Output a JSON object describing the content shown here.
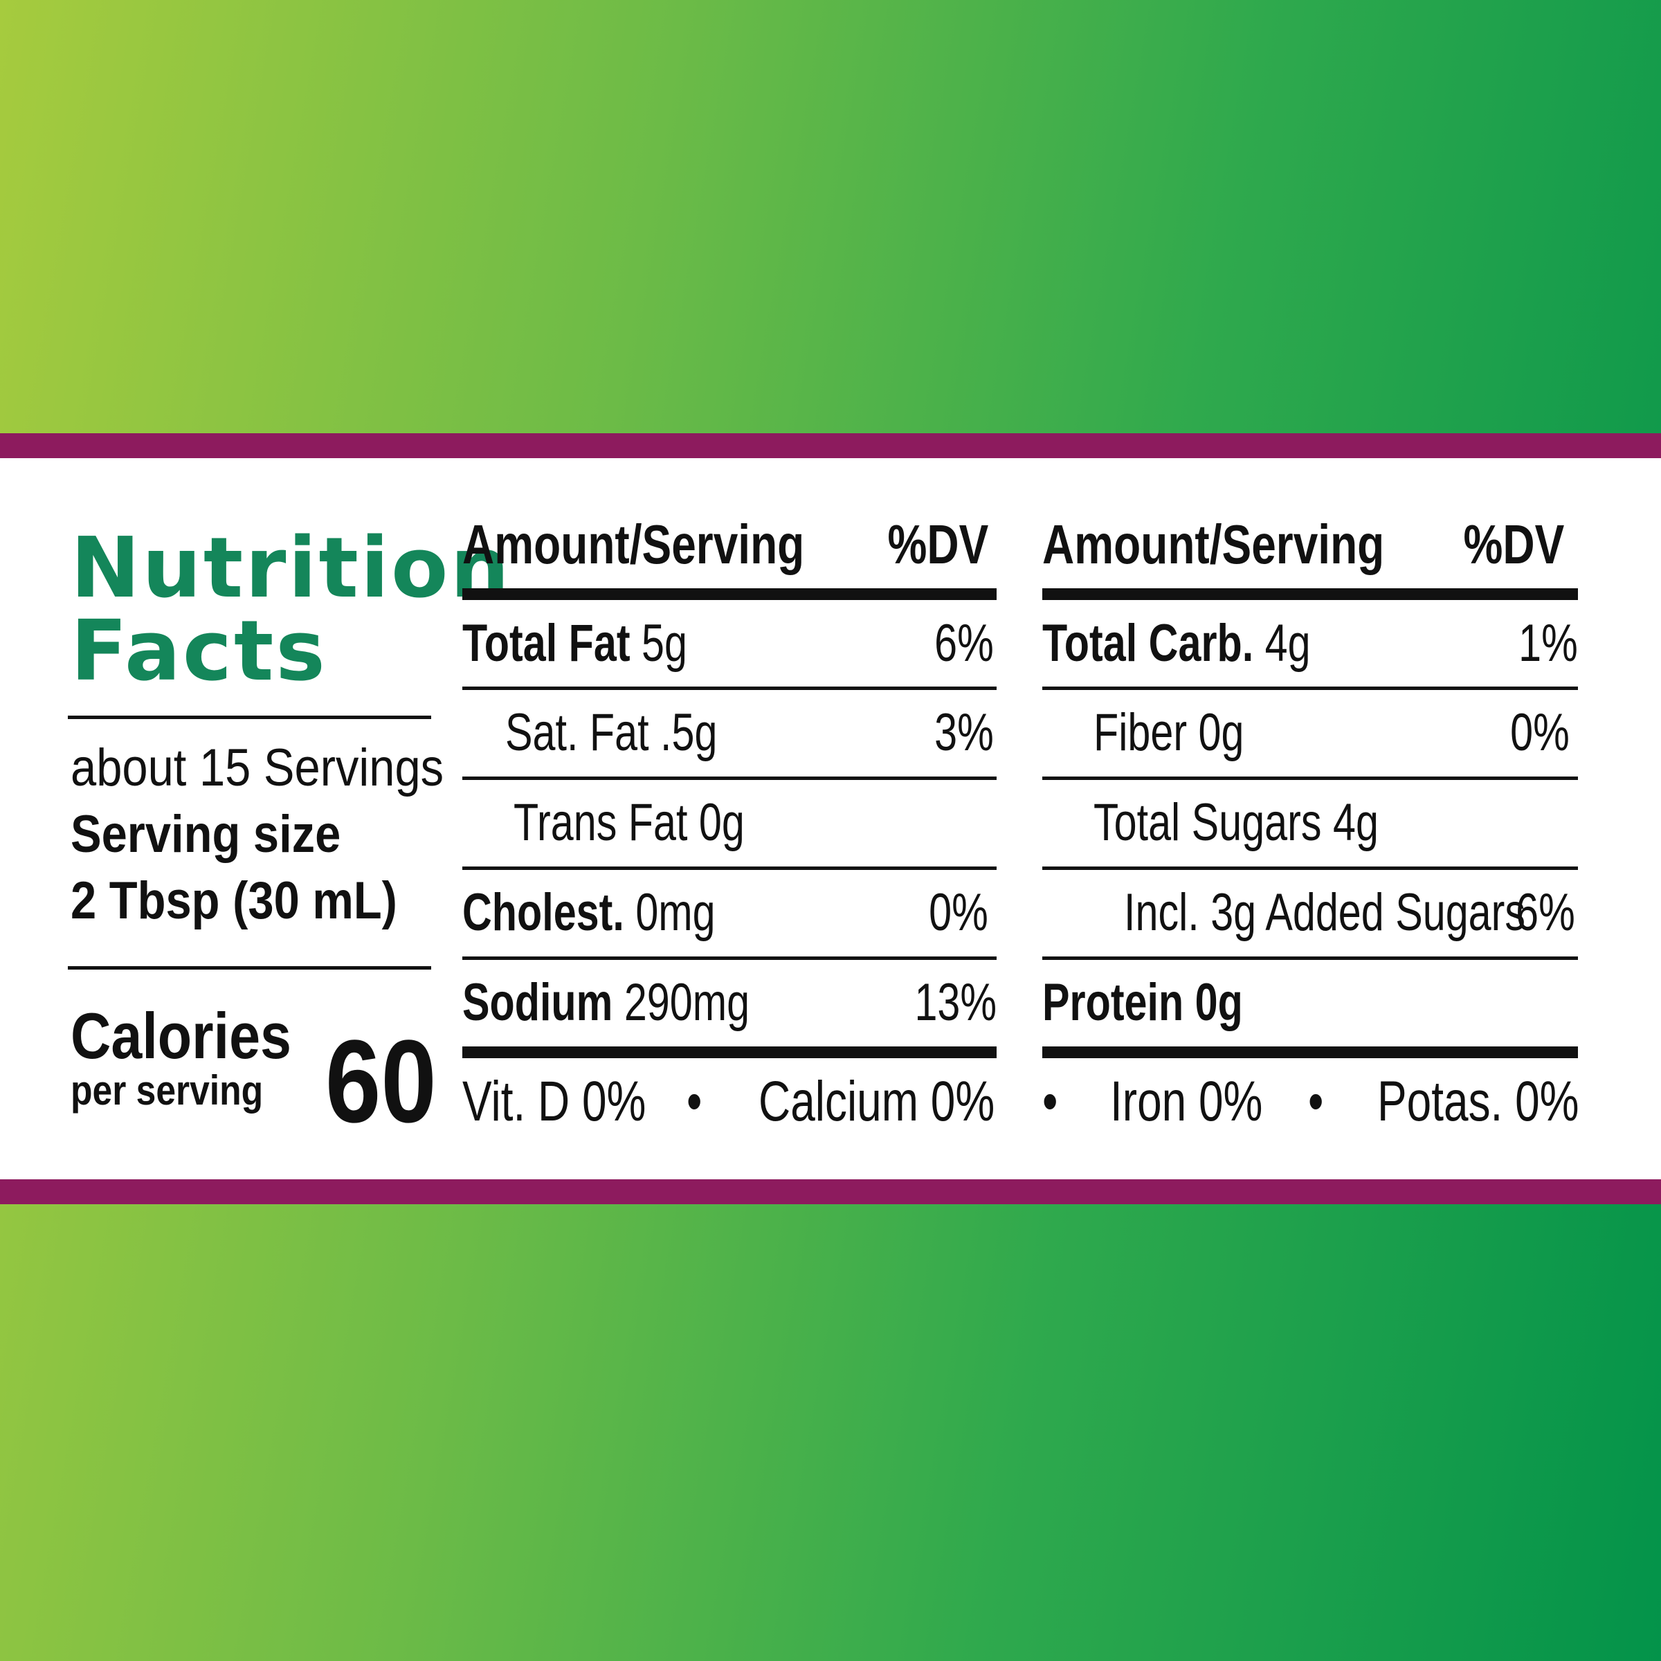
{
  "title": {
    "line1": "Nutrition",
    "line2": "Facts"
  },
  "servings": {
    "per_container": "about 15 Servings",
    "size_label": "Serving size",
    "size_value": "2 Tbsp (30 mL)"
  },
  "calories": {
    "label": "Calories",
    "sublabel": "per serving",
    "value": "60"
  },
  "left_column": {
    "header_amount": "Amount/Serving",
    "header_dv": "%DV",
    "rows": [
      {
        "name": "Total Fat",
        "amount": " 5g",
        "dv": "6%"
      },
      {
        "name": "",
        "amount": "Sat. Fat .5g",
        "dv": "3%"
      },
      {
        "name": "",
        "amount": "Trans Fat 0g",
        "dv": ""
      },
      {
        "name": "Cholest.",
        "amount": " 0mg",
        "dv": "0%"
      },
      {
        "name": "Sodium",
        "amount": " 290mg",
        "dv": "13%"
      }
    ]
  },
  "right_column": {
    "header_amount": "Amount/Serving",
    "header_dv": "%DV",
    "rows": [
      {
        "name": "Total Carb.",
        "amount": " 4g",
        "dv": "1%"
      },
      {
        "name": "",
        "amount": "Fiber 0g",
        "dv": "0%"
      },
      {
        "name": "",
        "amount": "Total Sugars 4g",
        "dv": ""
      },
      {
        "name": "",
        "amount": "Incl. 3g Added Sugars",
        "dv": "6%"
      },
      {
        "name": "Protein 0g",
        "amount": "",
        "dv": ""
      }
    ]
  },
  "vitamins": {
    "vit_d": "Vit. D 0%",
    "calcium": "Calcium 0%",
    "iron": "Iron 0%",
    "potassium": "Potas. 0%",
    "separator": "•"
  },
  "colors": {
    "title_green": "#14865a",
    "band_purple": "#8d1b5e"
  }
}
